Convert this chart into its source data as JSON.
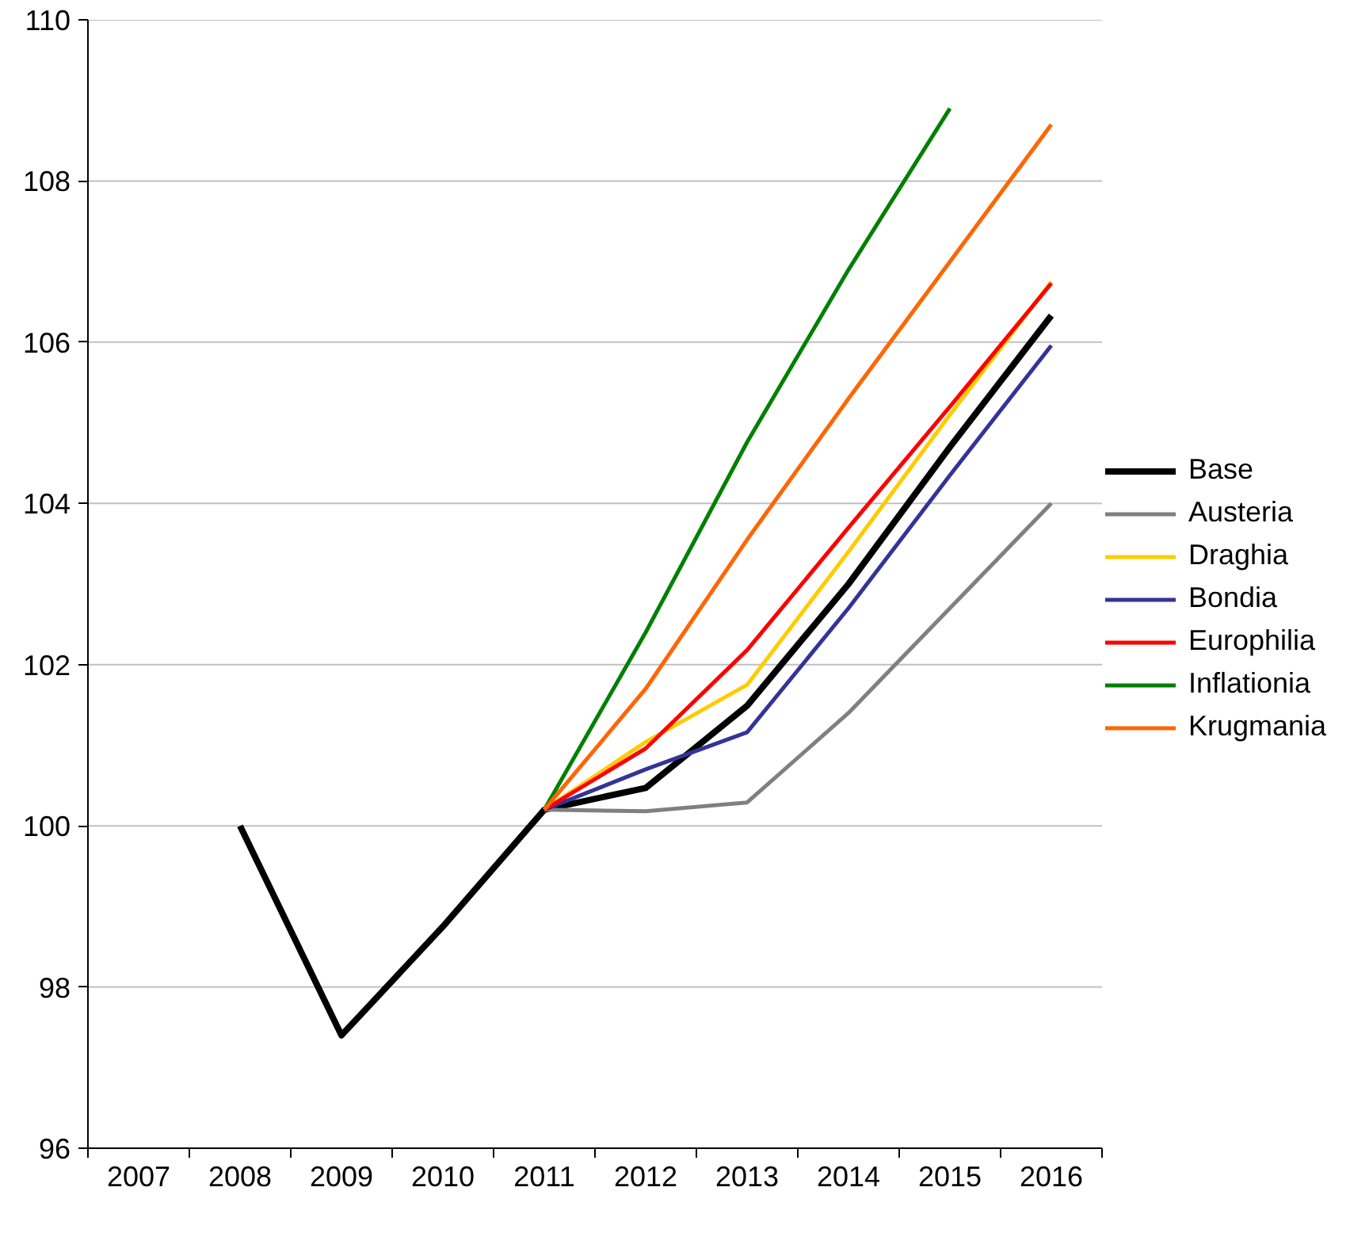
{
  "chart_data": {
    "type": "line",
    "categories": [
      "2007",
      "2008",
      "2009",
      "2010",
      "2011",
      "2012",
      "2013",
      "2014",
      "2015",
      "2016"
    ],
    "series": [
      {
        "name": "Base",
        "color": "#000000",
        "values": [
          null,
          100,
          97.4,
          98.75,
          100.2,
          100.47,
          101.49,
          103.0,
          104.7,
          106.33
        ]
      },
      {
        "name": "Austeria",
        "color": "#808080",
        "values": [
          null,
          null,
          null,
          null,
          100.2,
          100.18,
          100.29,
          101.4,
          102.7,
          104.0
        ]
      },
      {
        "name": "Draghia",
        "color": "#ffcc00",
        "values": [
          null,
          null,
          null,
          null,
          100.2,
          101.04,
          101.75,
          103.4,
          105.1,
          106.75
        ]
      },
      {
        "name": "Bondia",
        "color": "#333399",
        "values": [
          null,
          null,
          null,
          null,
          100.2,
          100.7,
          101.16,
          102.7,
          104.35,
          105.96
        ]
      },
      {
        "name": "Europhilia",
        "color": "#ff0000",
        "values": [
          null,
          null,
          null,
          null,
          100.2,
          100.96,
          102.18,
          103.7,
          105.2,
          106.73
        ]
      },
      {
        "name": "Inflationia",
        "color": "#008000",
        "values": [
          null,
          null,
          null,
          null,
          100.2,
          102.4,
          104.76,
          106.9,
          108.9,
          null
        ]
      },
      {
        "name": "Krugmania",
        "color": "#ff6600",
        "values": [
          null,
          null,
          null,
          null,
          100.2,
          101.7,
          103.55,
          105.3,
          107.0,
          108.7
        ]
      }
    ],
    "ylim": [
      96,
      110
    ],
    "yticks": [
      96,
      98,
      100,
      102,
      104,
      106,
      108,
      110
    ],
    "grid": "y",
    "legend": "right",
    "marker": "none",
    "line_style": "solid"
  }
}
